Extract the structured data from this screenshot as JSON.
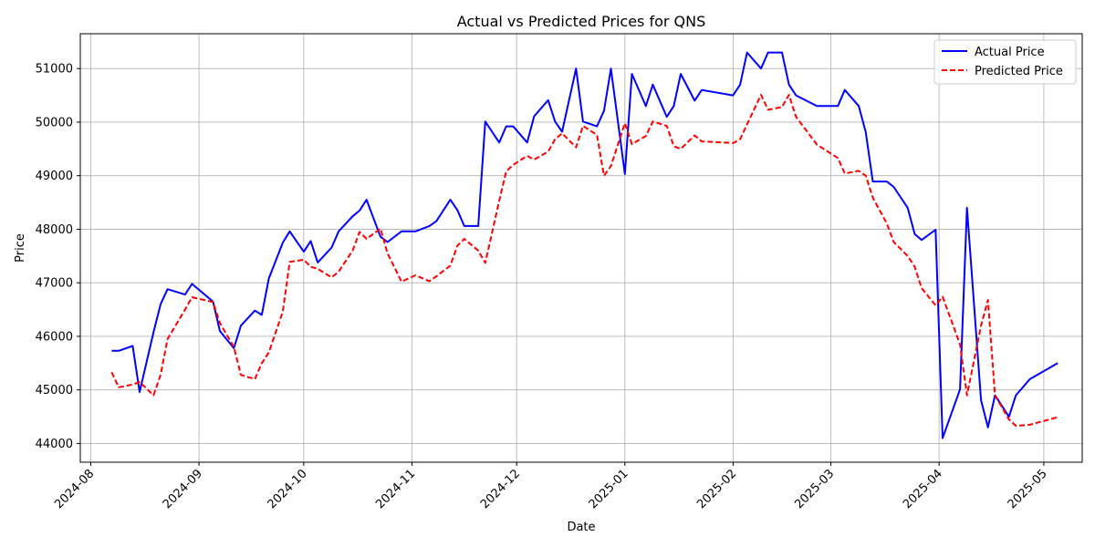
{
  "chart_data": {
    "type": "line",
    "title": "Actual vs Predicted Prices for QNS",
    "xlabel": "Date",
    "ylabel": "Price",
    "grid": true,
    "legend_position": "top-right",
    "xlim": [
      "2024-07-29",
      "2025-05-12"
    ],
    "ylim": [
      43650,
      51650
    ],
    "x_ticks": [
      "2024-08-01",
      "2024-09-01",
      "2024-10-01",
      "2024-11-01",
      "2024-12-01",
      "2025-01-01",
      "2025-02-01",
      "2025-03-01",
      "2025-04-01",
      "2025-05-01"
    ],
    "x_tick_labels": [
      "2024-08",
      "2024-09",
      "2024-10",
      "2024-11",
      "2024-12",
      "2025-01",
      "2025-02",
      "2025-03",
      "2025-04",
      "2025-05"
    ],
    "y_ticks": [
      44000,
      45000,
      46000,
      47000,
      48000,
      49000,
      50000,
      51000
    ],
    "y_tick_labels": [
      "44000",
      "45000",
      "46000",
      "47000",
      "48000",
      "49000",
      "50000",
      "51000"
    ],
    "series": [
      {
        "name": "Actual Price",
        "color": "#0000ff",
        "style": "solid",
        "points": [
          [
            "2024-08-07",
            45730
          ],
          [
            "2024-08-09",
            45730
          ],
          [
            "2024-08-13",
            45820
          ],
          [
            "2024-08-15",
            44960
          ],
          [
            "2024-08-19",
            46080
          ],
          [
            "2024-08-21",
            46600
          ],
          [
            "2024-08-23",
            46880
          ],
          [
            "2024-08-28",
            46780
          ],
          [
            "2024-08-30",
            46980
          ],
          [
            "2024-09-05",
            46650
          ],
          [
            "2024-09-07",
            46100
          ],
          [
            "2024-09-11",
            45780
          ],
          [
            "2024-09-13",
            46200
          ],
          [
            "2024-09-17",
            46480
          ],
          [
            "2024-09-19",
            46400
          ],
          [
            "2024-09-21",
            47080
          ],
          [
            "2024-09-25",
            47750
          ],
          [
            "2024-09-27",
            47960
          ],
          [
            "2024-10-01",
            47580
          ],
          [
            "2024-10-03",
            47780
          ],
          [
            "2024-10-05",
            47380
          ],
          [
            "2024-10-09",
            47660
          ],
          [
            "2024-10-11",
            47960
          ],
          [
            "2024-10-15",
            48240
          ],
          [
            "2024-10-17",
            48350
          ],
          [
            "2024-10-19",
            48550
          ],
          [
            "2024-10-23",
            47860
          ],
          [
            "2024-10-25",
            47760
          ],
          [
            "2024-10-29",
            47960
          ],
          [
            "2024-11-02",
            47960
          ],
          [
            "2024-11-06",
            48060
          ],
          [
            "2024-11-08",
            48150
          ],
          [
            "2024-11-12",
            48550
          ],
          [
            "2024-11-14",
            48360
          ],
          [
            "2024-11-16",
            48060
          ],
          [
            "2024-11-20",
            48060
          ],
          [
            "2024-11-22",
            50010
          ],
          [
            "2024-11-26",
            49620
          ],
          [
            "2024-11-28",
            49920
          ],
          [
            "2024-11-30",
            49920
          ],
          [
            "2024-12-04",
            49620
          ],
          [
            "2024-12-06",
            50110
          ],
          [
            "2024-12-10",
            50410
          ],
          [
            "2024-12-12",
            50010
          ],
          [
            "2024-12-14",
            49820
          ],
          [
            "2024-12-18",
            51000
          ],
          [
            "2024-12-20",
            50010
          ],
          [
            "2024-12-24",
            49920
          ],
          [
            "2024-12-26",
            50210
          ],
          [
            "2024-12-28",
            51000
          ],
          [
            "2025-01-01",
            49030
          ],
          [
            "2025-01-03",
            50900
          ],
          [
            "2025-01-07",
            50300
          ],
          [
            "2025-01-09",
            50700
          ],
          [
            "2025-01-13",
            50100
          ],
          [
            "2025-01-15",
            50300
          ],
          [
            "2025-01-17",
            50900
          ],
          [
            "2025-01-21",
            50400
          ],
          [
            "2025-01-23",
            50600
          ],
          [
            "2025-02-01",
            50500
          ],
          [
            "2025-02-03",
            50700
          ],
          [
            "2025-02-05",
            51300
          ],
          [
            "2025-02-09",
            51000
          ],
          [
            "2025-02-11",
            51300
          ],
          [
            "2025-02-15",
            51300
          ],
          [
            "2025-02-17",
            50700
          ],
          [
            "2025-02-19",
            50500
          ],
          [
            "2025-02-25",
            50300
          ],
          [
            "2025-03-03",
            50300
          ],
          [
            "2025-03-05",
            50600
          ],
          [
            "2025-03-09",
            50300
          ],
          [
            "2025-03-11",
            49810
          ],
          [
            "2025-03-13",
            48890
          ],
          [
            "2025-03-17",
            48890
          ],
          [
            "2025-03-19",
            48790
          ],
          [
            "2025-03-23",
            48400
          ],
          [
            "2025-03-25",
            47910
          ],
          [
            "2025-03-27",
            47800
          ],
          [
            "2025-03-31",
            47990
          ],
          [
            "2025-04-02",
            44100
          ],
          [
            "2025-04-07",
            45010
          ],
          [
            "2025-04-09",
            48400
          ],
          [
            "2025-04-13",
            44810
          ],
          [
            "2025-04-15",
            44300
          ],
          [
            "2025-04-17",
            44900
          ],
          [
            "2025-04-21",
            44500
          ],
          [
            "2025-04-23",
            44900
          ],
          [
            "2025-04-27",
            45200
          ],
          [
            "2025-05-05",
            45500
          ]
        ]
      },
      {
        "name": "Predicted Price",
        "color": "#ff0000",
        "style": "dashed",
        "points": [
          [
            "2024-08-07",
            45330
          ],
          [
            "2024-08-09",
            45050
          ],
          [
            "2024-08-13",
            45100
          ],
          [
            "2024-08-15",
            45150
          ],
          [
            "2024-08-19",
            44900
          ],
          [
            "2024-08-21",
            45280
          ],
          [
            "2024-08-23",
            45950
          ],
          [
            "2024-08-28",
            46500
          ],
          [
            "2024-08-30",
            46730
          ],
          [
            "2024-09-05",
            46640
          ],
          [
            "2024-09-07",
            46250
          ],
          [
            "2024-09-11",
            45800
          ],
          [
            "2024-09-13",
            45280
          ],
          [
            "2024-09-17",
            45200
          ],
          [
            "2024-09-19",
            45500
          ],
          [
            "2024-09-21",
            45700
          ],
          [
            "2024-09-25",
            46460
          ],
          [
            "2024-09-27",
            47390
          ],
          [
            "2024-10-01",
            47430
          ],
          [
            "2024-10-03",
            47300
          ],
          [
            "2024-10-05",
            47260
          ],
          [
            "2024-10-09",
            47100
          ],
          [
            "2024-10-11",
            47210
          ],
          [
            "2024-10-15",
            47600
          ],
          [
            "2024-10-17",
            47950
          ],
          [
            "2024-10-19",
            47820
          ],
          [
            "2024-10-23",
            48010
          ],
          [
            "2024-10-25",
            47550
          ],
          [
            "2024-10-29",
            47020
          ],
          [
            "2024-11-02",
            47140
          ],
          [
            "2024-11-06",
            47030
          ],
          [
            "2024-11-08",
            47120
          ],
          [
            "2024-11-12",
            47320
          ],
          [
            "2024-11-14",
            47690
          ],
          [
            "2024-11-16",
            47820
          ],
          [
            "2024-11-20",
            47600
          ],
          [
            "2024-11-22",
            47370
          ],
          [
            "2024-11-26",
            48530
          ],
          [
            "2024-11-28",
            49080
          ],
          [
            "2024-11-30",
            49200
          ],
          [
            "2024-12-04",
            49370
          ],
          [
            "2024-12-06",
            49300
          ],
          [
            "2024-12-10",
            49450
          ],
          [
            "2024-12-12",
            49680
          ],
          [
            "2024-12-14",
            49790
          ],
          [
            "2024-12-18",
            49530
          ],
          [
            "2024-12-20",
            49930
          ],
          [
            "2024-12-24",
            49760
          ],
          [
            "2024-12-26",
            49000
          ],
          [
            "2024-12-28",
            49180
          ],
          [
            "2025-01-01",
            49980
          ],
          [
            "2025-01-03",
            49590
          ],
          [
            "2025-01-07",
            49740
          ],
          [
            "2025-01-09",
            50010
          ],
          [
            "2025-01-13",
            49930
          ],
          [
            "2025-01-15",
            49550
          ],
          [
            "2025-01-17",
            49500
          ],
          [
            "2025-01-21",
            49750
          ],
          [
            "2025-01-23",
            49640
          ],
          [
            "2025-02-01",
            49610
          ],
          [
            "2025-02-03",
            49680
          ],
          [
            "2025-02-05",
            49960
          ],
          [
            "2025-02-09",
            50510
          ],
          [
            "2025-02-11",
            50230
          ],
          [
            "2025-02-15",
            50280
          ],
          [
            "2025-02-17",
            50510
          ],
          [
            "2025-02-19",
            50100
          ],
          [
            "2025-02-25",
            49580
          ],
          [
            "2025-03-03",
            49330
          ],
          [
            "2025-03-05",
            49040
          ],
          [
            "2025-03-09",
            49090
          ],
          [
            "2025-03-11",
            49000
          ],
          [
            "2025-03-13",
            48590
          ],
          [
            "2025-03-17",
            48110
          ],
          [
            "2025-03-19",
            47760
          ],
          [
            "2025-03-23",
            47500
          ],
          [
            "2025-03-25",
            47300
          ],
          [
            "2025-03-27",
            46900
          ],
          [
            "2025-03-31",
            46580
          ],
          [
            "2025-04-02",
            46740
          ],
          [
            "2025-04-07",
            45850
          ],
          [
            "2025-04-09",
            44900
          ],
          [
            "2025-04-13",
            46200
          ],
          [
            "2025-04-15",
            46680
          ],
          [
            "2025-04-17",
            44900
          ],
          [
            "2025-04-21",
            44450
          ],
          [
            "2025-04-23",
            44330
          ],
          [
            "2025-04-27",
            44350
          ],
          [
            "2025-05-05",
            44490
          ]
        ]
      }
    ]
  }
}
